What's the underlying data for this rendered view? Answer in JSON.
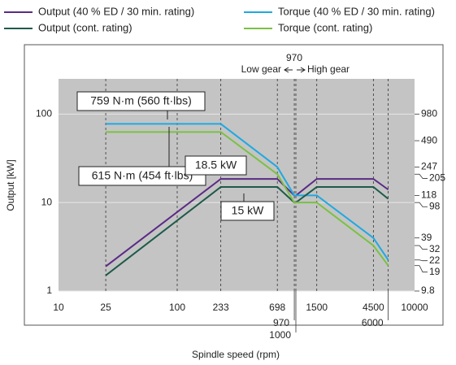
{
  "chart_data": {
    "type": "line",
    "x_label": "Spindle speed (rpm)",
    "y_label": "Output [kW]",
    "x": [
      25,
      233,
      698,
      970,
      1000,
      1500,
      4500,
      6000
    ],
    "series": [
      {
        "name": "Output (40 % ED / 30 min. rating)",
        "color": "#5b2a86",
        "values": [
          1.9,
          18.5,
          18.5,
          12,
          12,
          18.5,
          18.5,
          14
        ]
      },
      {
        "name": "Torque (40 % ED / 30 min. rating)",
        "color": "#1fa9e1",
        "axis": "y2",
        "values": [
          759,
          759,
          247,
          118,
          118,
          118,
          39,
          22
        ]
      },
      {
        "name": "Output (cont. rating)",
        "color": "#1e5a4a",
        "values": [
          1.5,
          15,
          15,
          10,
          10,
          15,
          15,
          11
        ]
      },
      {
        "name": "Torque (cont. rating)",
        "color": "#7ac143",
        "axis": "y2",
        "values": [
          615,
          615,
          205,
          98,
          98,
          98,
          32,
          19
        ]
      }
    ],
    "log_x": true,
    "log_y": true,
    "xlim": [
      10,
      10000
    ],
    "xticks": [
      10,
      25,
      100,
      233,
      698,
      970,
      1000,
      1500,
      4500,
      6000,
      10000
    ],
    "ylim": [
      1,
      250
    ],
    "yticks": [
      1,
      10,
      100
    ],
    "y2lim": [
      9.8,
      2450
    ],
    "y2ticks": [
      980,
      490,
      247,
      205,
      118,
      98,
      39,
      32,
      22,
      19,
      9.8
    ],
    "annotations": [
      "759 N·m (560 ft·lbs)",
      "615 N·m (454 ft·lbs)",
      "18.5 kW",
      "15 kW"
    ],
    "gear_change": {
      "speed": "970",
      "low": "Low gear",
      "high": "High gear"
    }
  }
}
